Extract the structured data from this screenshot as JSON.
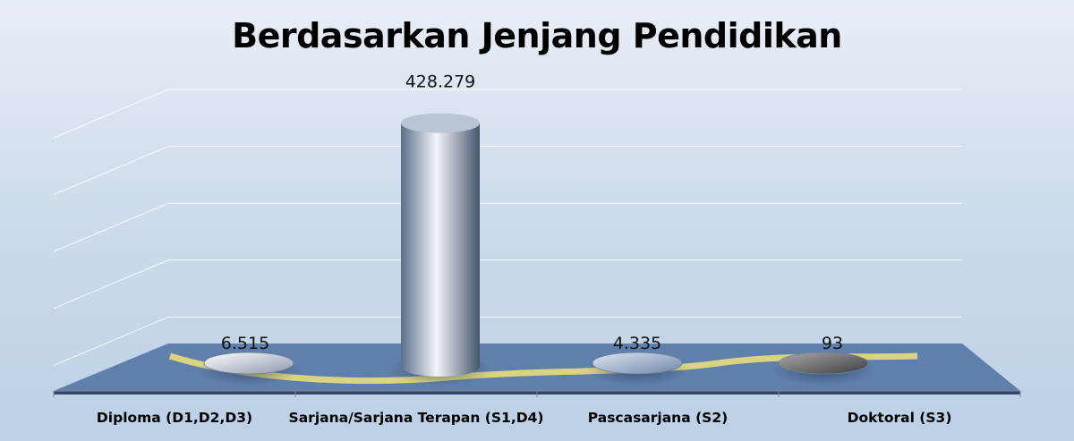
{
  "chart_data": {
    "type": "bar",
    "title": "Berdasarkan Jenjang Pendidikan",
    "categories": [
      "Diploma (D1,D2,D3)",
      "Sarjana/Sarjana Terapan (S1,D4)",
      "Pascasarjana (S2)",
      "Doktoral (S3)"
    ],
    "values": [
      6515,
      428279,
      4335,
      93
    ],
    "value_labels": [
      "6.515",
      "428.279",
      "4.335",
      "93"
    ],
    "ylim": [
      0,
      500000
    ],
    "grid": true,
    "legend": "none",
    "colors": {
      "floor": "#5f80ad",
      "trend_line": "#e8dc7a",
      "bar_light": "#f2f5fa",
      "bar_dark": "#5d6f88"
    }
  }
}
